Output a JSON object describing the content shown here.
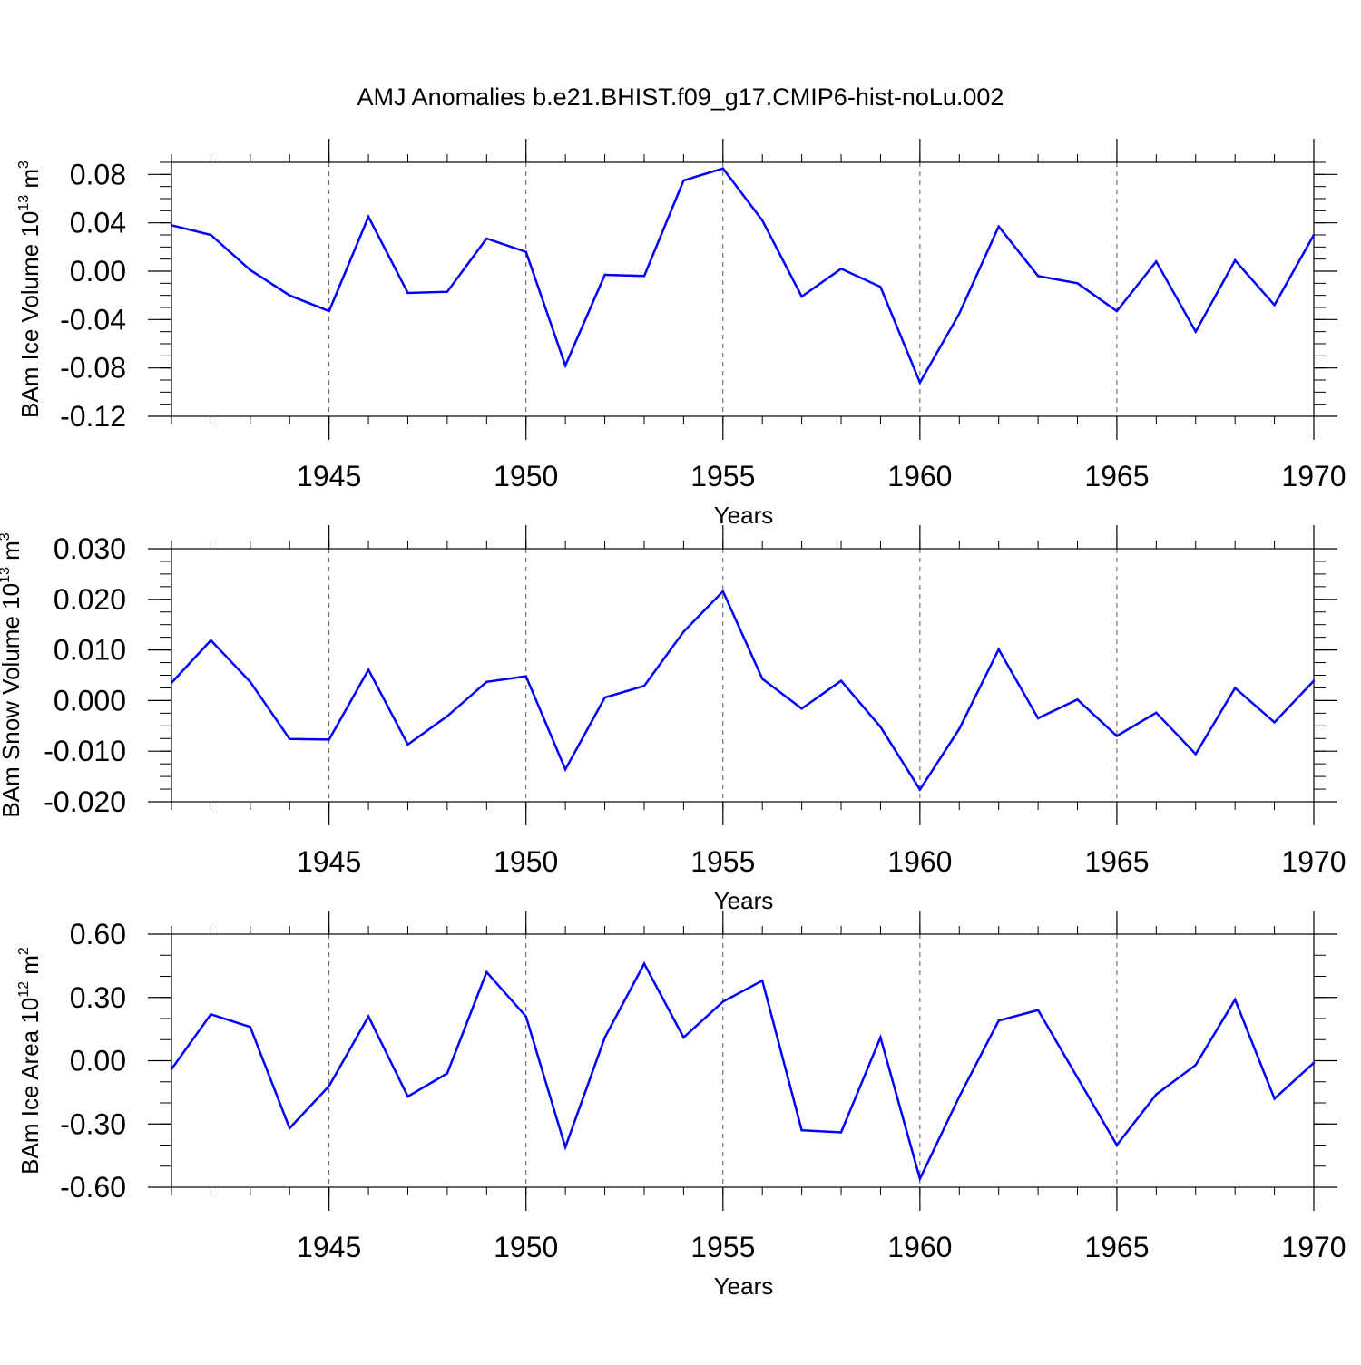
{
  "chart_title": "AMJ Anomalies b.e21.BHIST.f09_g17.CMIP6-hist-noLu.002",
  "line_color": "#0000ff",
  "x_range": [
    1941,
    1970
  ],
  "x_ticks": [
    1945,
    1950,
    1955,
    1960,
    1965,
    1970
  ],
  "x_tick_labels": [
    "1945",
    "1950",
    "1955",
    "1960",
    "1965",
    "1970"
  ],
  "x_minor_step": 1,
  "years": [
    1941,
    1942,
    1943,
    1944,
    1945,
    1946,
    1947,
    1948,
    1949,
    1950,
    1951,
    1952,
    1953,
    1954,
    1955,
    1956,
    1957,
    1958,
    1959,
    1960,
    1961,
    1962,
    1963,
    1964,
    1965,
    1966,
    1967,
    1968,
    1969,
    1970
  ],
  "chart_data": [
    {
      "type": "line",
      "title": "AMJ Anomalies b.e21.BHIST.f09_g17.CMIP6-hist-noLu.002",
      "xlabel": "Years",
      "ylabel": {
        "main": "BAm Ice Volume 10",
        "sup": "13",
        "unit": " m",
        "unit_sup": "3"
      },
      "xlim": [
        1941,
        1970
      ],
      "ylim": [
        -0.12,
        0.09
      ],
      "y_ticks": [
        -0.12,
        -0.08,
        -0.04,
        0.0,
        0.04,
        0.08
      ],
      "y_tick_labels": [
        "-0.12",
        "-0.08",
        "-0.04",
        "0.00",
        "0.04",
        "0.08"
      ],
      "y_minor_step": 0.01,
      "grid": "vertical dashed at major x ticks",
      "series": [
        {
          "name": "BAm Ice Volume",
          "x": [
            1941,
            1942,
            1943,
            1944,
            1945,
            1946,
            1947,
            1948,
            1949,
            1950,
            1951,
            1952,
            1953,
            1954,
            1955,
            1956,
            1957,
            1958,
            1959,
            1960,
            1961,
            1962,
            1963,
            1964,
            1965,
            1966,
            1967,
            1968,
            1969,
            1970
          ],
          "values": [
            0.038,
            0.03,
            0.001,
            -0.02,
            -0.033,
            0.045,
            -0.018,
            -0.017,
            0.027,
            0.016,
            -0.078,
            -0.003,
            -0.004,
            0.075,
            0.085,
            0.042,
            -0.021,
            0.002,
            -0.013,
            -0.092,
            -0.035,
            0.037,
            -0.004,
            -0.01,
            -0.033,
            0.008,
            -0.05,
            0.009,
            -0.028,
            0.03
          ]
        }
      ]
    },
    {
      "type": "line",
      "title": "",
      "xlabel": "Years",
      "ylabel": {
        "main": "BAm Snow Volume 10",
        "sup": "13",
        "unit": " m",
        "unit_sup": "3"
      },
      "xlim": [
        1941,
        1970
      ],
      "ylim": [
        -0.02,
        0.03
      ],
      "y_ticks": [
        -0.02,
        -0.01,
        0.0,
        0.01,
        0.02,
        0.03
      ],
      "y_tick_labels": [
        "-0.020",
        "-0.010",
        "0.000",
        "0.010",
        "0.020",
        "0.030"
      ],
      "y_minor_step": 0.0025,
      "grid": "vertical dashed at major x ticks",
      "series": [
        {
          "name": "BAm Snow Volume",
          "x": [
            1941,
            1942,
            1943,
            1944,
            1945,
            1946,
            1947,
            1948,
            1949,
            1950,
            1951,
            1952,
            1953,
            1954,
            1955,
            1956,
            1957,
            1958,
            1959,
            1960,
            1961,
            1962,
            1963,
            1964,
            1965,
            1966,
            1967,
            1968,
            1969,
            1970
          ],
          "values": [
            0.0035,
            0.0119,
            0.0037,
            -0.0076,
            -0.0077,
            0.0061,
            -0.0087,
            -0.0031,
            0.0037,
            0.0048,
            -0.0136,
            0.0006,
            0.0029,
            0.0136,
            0.0216,
            0.0043,
            -0.0016,
            0.0039,
            -0.0052,
            -0.0176,
            -0.0056,
            0.0101,
            -0.0035,
            0.0002,
            -0.007,
            -0.0024,
            -0.0106,
            0.0025,
            -0.0043,
            0.0039
          ]
        }
      ]
    },
    {
      "type": "line",
      "title": "",
      "xlabel": "Years",
      "ylabel": {
        "main": "BAm Ice Area 10",
        "sup": "12",
        "unit": " m",
        "unit_sup": "2"
      },
      "xlim": [
        1941,
        1970
      ],
      "ylim": [
        -0.6,
        0.6
      ],
      "y_ticks": [
        -0.6,
        -0.3,
        0.0,
        0.3,
        0.6
      ],
      "y_tick_labels": [
        "-0.60",
        "-0.30",
        "0.00",
        "0.30",
        "0.60"
      ],
      "y_minor_step": 0.1,
      "grid": "vertical dashed at major x ticks",
      "series": [
        {
          "name": "BAm Ice Area",
          "x": [
            1941,
            1942,
            1943,
            1944,
            1945,
            1946,
            1947,
            1948,
            1949,
            1950,
            1951,
            1952,
            1953,
            1954,
            1955,
            1956,
            1957,
            1958,
            1959,
            1960,
            1961,
            1962,
            1963,
            1964,
            1965,
            1966,
            1967,
            1968,
            1969,
            1970
          ],
          "values": [
            -0.04,
            0.22,
            0.16,
            -0.32,
            -0.12,
            0.21,
            -0.17,
            -0.06,
            0.42,
            0.21,
            -0.41,
            0.11,
            0.46,
            0.11,
            0.28,
            0.38,
            -0.33,
            -0.34,
            0.11,
            -0.56,
            -0.17,
            0.19,
            0.24,
            -0.08,
            -0.4,
            -0.16,
            -0.02,
            0.29,
            -0.18,
            -0.01
          ]
        }
      ]
    }
  ]
}
